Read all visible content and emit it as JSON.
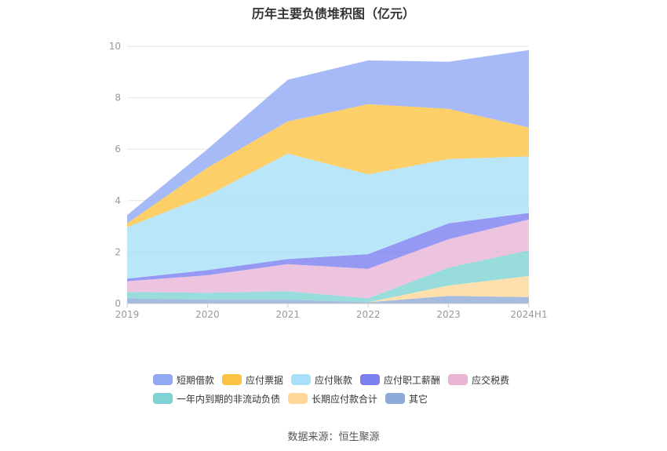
{
  "title": "历年主要负债堆积图（亿元）",
  "source": "数据来源：恒生聚源",
  "chart_data": {
    "type": "area",
    "title": "历年主要负债堆积图（亿元）",
    "x": [
      "2019",
      "2020",
      "2021",
      "2022",
      "2023",
      "2024H1"
    ],
    "y_ticks": [
      "0",
      "2",
      "4",
      "6",
      "8",
      "10"
    ],
    "ylim": [
      0,
      10
    ],
    "grid": true,
    "legend_position": "bottom",
    "series": [
      {
        "name": "其它",
        "color": "#8eaad8",
        "values": [
          0.2,
          0.15,
          0.15,
          0.05,
          0.3,
          0.25
        ]
      },
      {
        "name": "长期应付款合计",
        "color": "#ffd898",
        "values": [
          0.0,
          0.0,
          0.0,
          0.0,
          0.4,
          0.82
        ]
      },
      {
        "name": "一年内到期的非流动负债",
        "color": "#7fd3d3",
        "values": [
          0.25,
          0.27,
          0.33,
          0.15,
          0.7,
          1.0
        ]
      },
      {
        "name": "应交税费",
        "color": "#e8b5d7",
        "values": [
          0.42,
          0.68,
          1.05,
          1.15,
          1.1,
          1.2
        ]
      },
      {
        "name": "应付职工薪酬",
        "color": "#7b7ff0",
        "values": [
          0.1,
          0.2,
          0.2,
          0.57,
          0.62,
          0.25
        ]
      },
      {
        "name": "应付账款",
        "color": "#a7e0f7",
        "values": [
          2.0,
          2.9,
          4.1,
          3.1,
          2.5,
          2.2
        ]
      },
      {
        "name": "应付票据",
        "color": "#fcc342",
        "values": [
          0.15,
          1.08,
          1.25,
          2.73,
          1.95,
          1.12
        ]
      },
      {
        "name": "短期借款",
        "color": "#8fa9f5",
        "values": [
          0.32,
          0.72,
          1.62,
          1.7,
          1.83,
          3.01
        ]
      }
    ]
  },
  "legend_rows": [
    [
      0,
      1,
      2,
      3,
      4
    ],
    [
      5,
      6,
      7
    ]
  ],
  "legend_items": [
    {
      "name": "短期借款",
      "color": "#8fa9f5"
    },
    {
      "name": "应付票据",
      "color": "#fcc342"
    },
    {
      "name": "应付账款",
      "color": "#a7e0f7"
    },
    {
      "name": "应付职工薪酬",
      "color": "#7b7ff0"
    },
    {
      "name": "应交税费",
      "color": "#e8b5d7"
    },
    {
      "name": "一年内到期的非流动负债",
      "color": "#7fd3d3"
    },
    {
      "name": "长期应付款合计",
      "color": "#ffd898"
    },
    {
      "name": "其它",
      "color": "#8eaad8"
    }
  ]
}
